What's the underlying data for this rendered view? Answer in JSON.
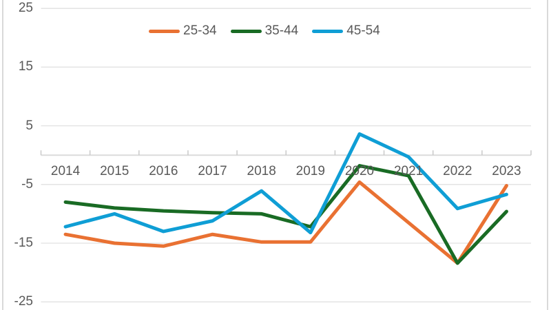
{
  "chart_data": {
    "type": "line",
    "title": "",
    "xlabel": "",
    "ylabel": "",
    "categories": [
      "2014",
      "2015",
      "2016",
      "2017",
      "2018",
      "2019",
      "2020",
      "2021",
      "2022",
      "2023"
    ],
    "series": [
      {
        "name": "25-34",
        "color": "#E97132",
        "values": [
          -13.5,
          -15.0,
          -15.5,
          -13.5,
          -14.8,
          -14.8,
          -4.6,
          -11.5,
          -18.4,
          -5.2
        ]
      },
      {
        "name": "35-44",
        "color": "#196B24",
        "values": [
          -8.0,
          -9.0,
          -9.5,
          -9.8,
          -10.0,
          -12.2,
          -1.8,
          -3.5,
          -18.4,
          -9.6
        ]
      },
      {
        "name": "45-54",
        "color": "#0F9ED5",
        "values": [
          -12.2,
          -10.0,
          -13.0,
          -11.2,
          -6.1,
          -13.2,
          3.6,
          -0.3,
          -9.1,
          -6.7
        ]
      }
    ],
    "ylim": [
      -25,
      25
    ],
    "yticks": [
      25,
      15,
      5,
      -5,
      -15,
      -25
    ],
    "grid": true,
    "legend_position": "top-center",
    "colors": {
      "grid_line": "#e0e0e0",
      "zero_axis_line": "#dbdbdb",
      "tick_mark": "#c9c9c9",
      "label_text": "#595959",
      "frame_edge": "#d9d9d9",
      "background": "#ffffff"
    }
  }
}
